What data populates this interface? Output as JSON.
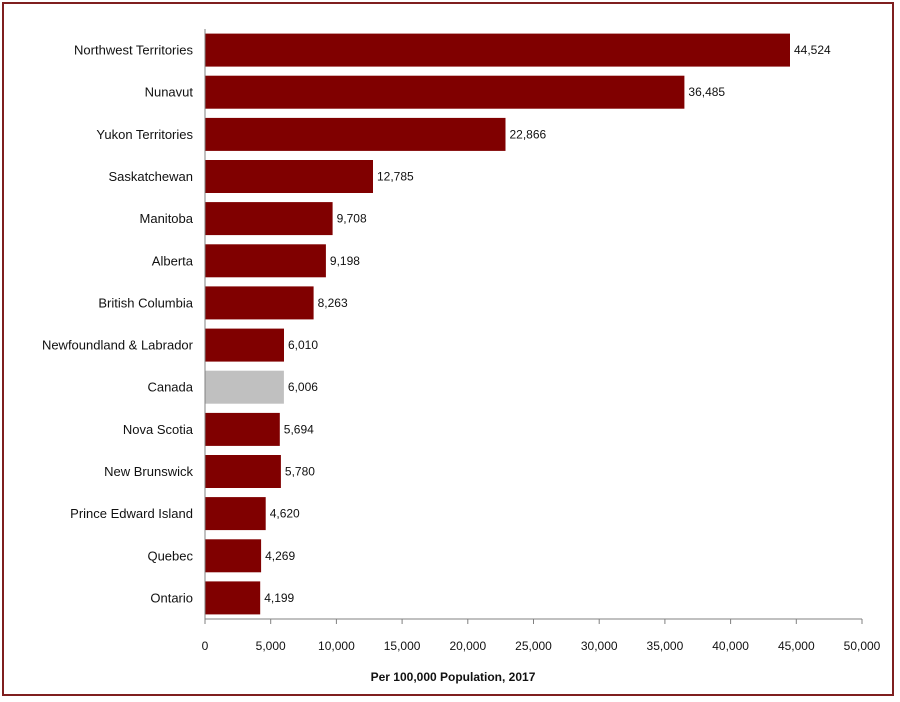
{
  "chart_data": {
    "type": "bar",
    "orientation": "horizontal",
    "categories": [
      "Northwest Territories",
      "Nunavut",
      "Yukon Territories",
      "Saskatchewan",
      "Manitoba",
      "Alberta",
      "British Columbia",
      "Newfoundland & Labrador",
      "Canada",
      "Nova Scotia",
      "New Brunswick",
      "Prince Edward Island",
      "Quebec",
      "Ontario"
    ],
    "values": [
      44524,
      36485,
      22866,
      12785,
      9708,
      9198,
      8263,
      6010,
      6006,
      5694,
      5780,
      4620,
      4269,
      4199
    ],
    "value_labels": [
      "44,524",
      "36,485",
      "22,866",
      "12,785",
      "9,708",
      "9,198",
      "8,263",
      "6,010",
      "6,006",
      "5,694",
      "5,780",
      "4,620",
      "4,269",
      "4,199"
    ],
    "highlight_category": "Canada",
    "xlabel": "Per 100,000 Population, 2017",
    "xlim": [
      0,
      50000
    ],
    "xticks": [
      0,
      5000,
      10000,
      15000,
      20000,
      25000,
      30000,
      35000,
      40000,
      45000,
      50000
    ],
    "xtick_labels": [
      "0",
      "5,000",
      "10,000",
      "15,000",
      "20,000",
      "25,000",
      "30,000",
      "35,000",
      "40,000",
      "45,000",
      "50,000"
    ],
    "grid": false,
    "colors": {
      "bar": "#800000",
      "highlight": "#c0c0c0",
      "frame": "#7f1f1f",
      "axis": "#808080"
    }
  }
}
